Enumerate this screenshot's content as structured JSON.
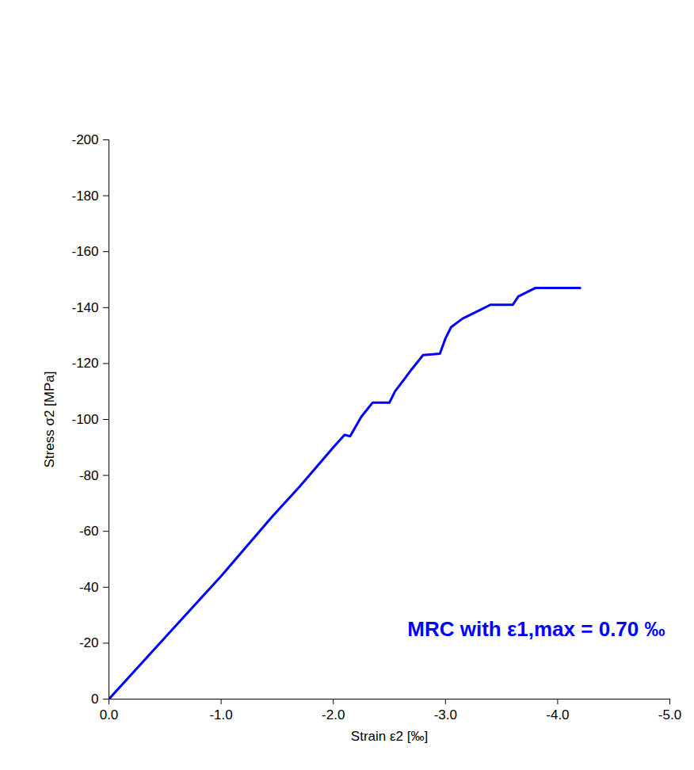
{
  "chart_data": {
    "type": "line",
    "x_label": "Strain ε2 [‰]",
    "y_label": "Stress σ2 [MPa]",
    "annotation": "MRC with ε1,max = 0.70 ‰",
    "xlim": [
      0,
      -5
    ],
    "ylim": [
      0,
      -200
    ],
    "xticks": [
      {
        "value": 0,
        "label": "0.0"
      },
      {
        "value": -1,
        "label": "-1.0"
      },
      {
        "value": -2,
        "label": "-2.0"
      },
      {
        "value": -3,
        "label": "-3.0"
      },
      {
        "value": -4,
        "label": "-4.0"
      },
      {
        "value": -5,
        "label": "-5.0"
      }
    ],
    "yticks": [
      0,
      -20,
      -40,
      -60,
      -80,
      -100,
      -120,
      -140,
      -160,
      -180,
      -200
    ],
    "grid": false,
    "series": [
      {
        "name": "MRC",
        "color": "#0000ff",
        "line_style": "solid",
        "x": [
          0,
          -0.5,
          -1.0,
          -1.45,
          -1.7,
          -2.0,
          -2.1,
          -2.15,
          -2.25,
          -2.35,
          -2.5,
          -2.55,
          -2.7,
          -2.8,
          -2.95,
          -3.0,
          -3.05,
          -3.15,
          -3.3,
          -3.4,
          -3.6,
          -3.65,
          -3.8,
          -4.2
        ],
        "values": [
          0,
          -22,
          -44,
          -65,
          -76,
          -90,
          -94.5,
          -94,
          -101,
          -106,
          -106,
          -110,
          -118,
          -123,
          -123.5,
          -129,
          -133,
          -136,
          -139,
          -141,
          -141,
          -144,
          -147,
          -147
        ]
      }
    ]
  }
}
